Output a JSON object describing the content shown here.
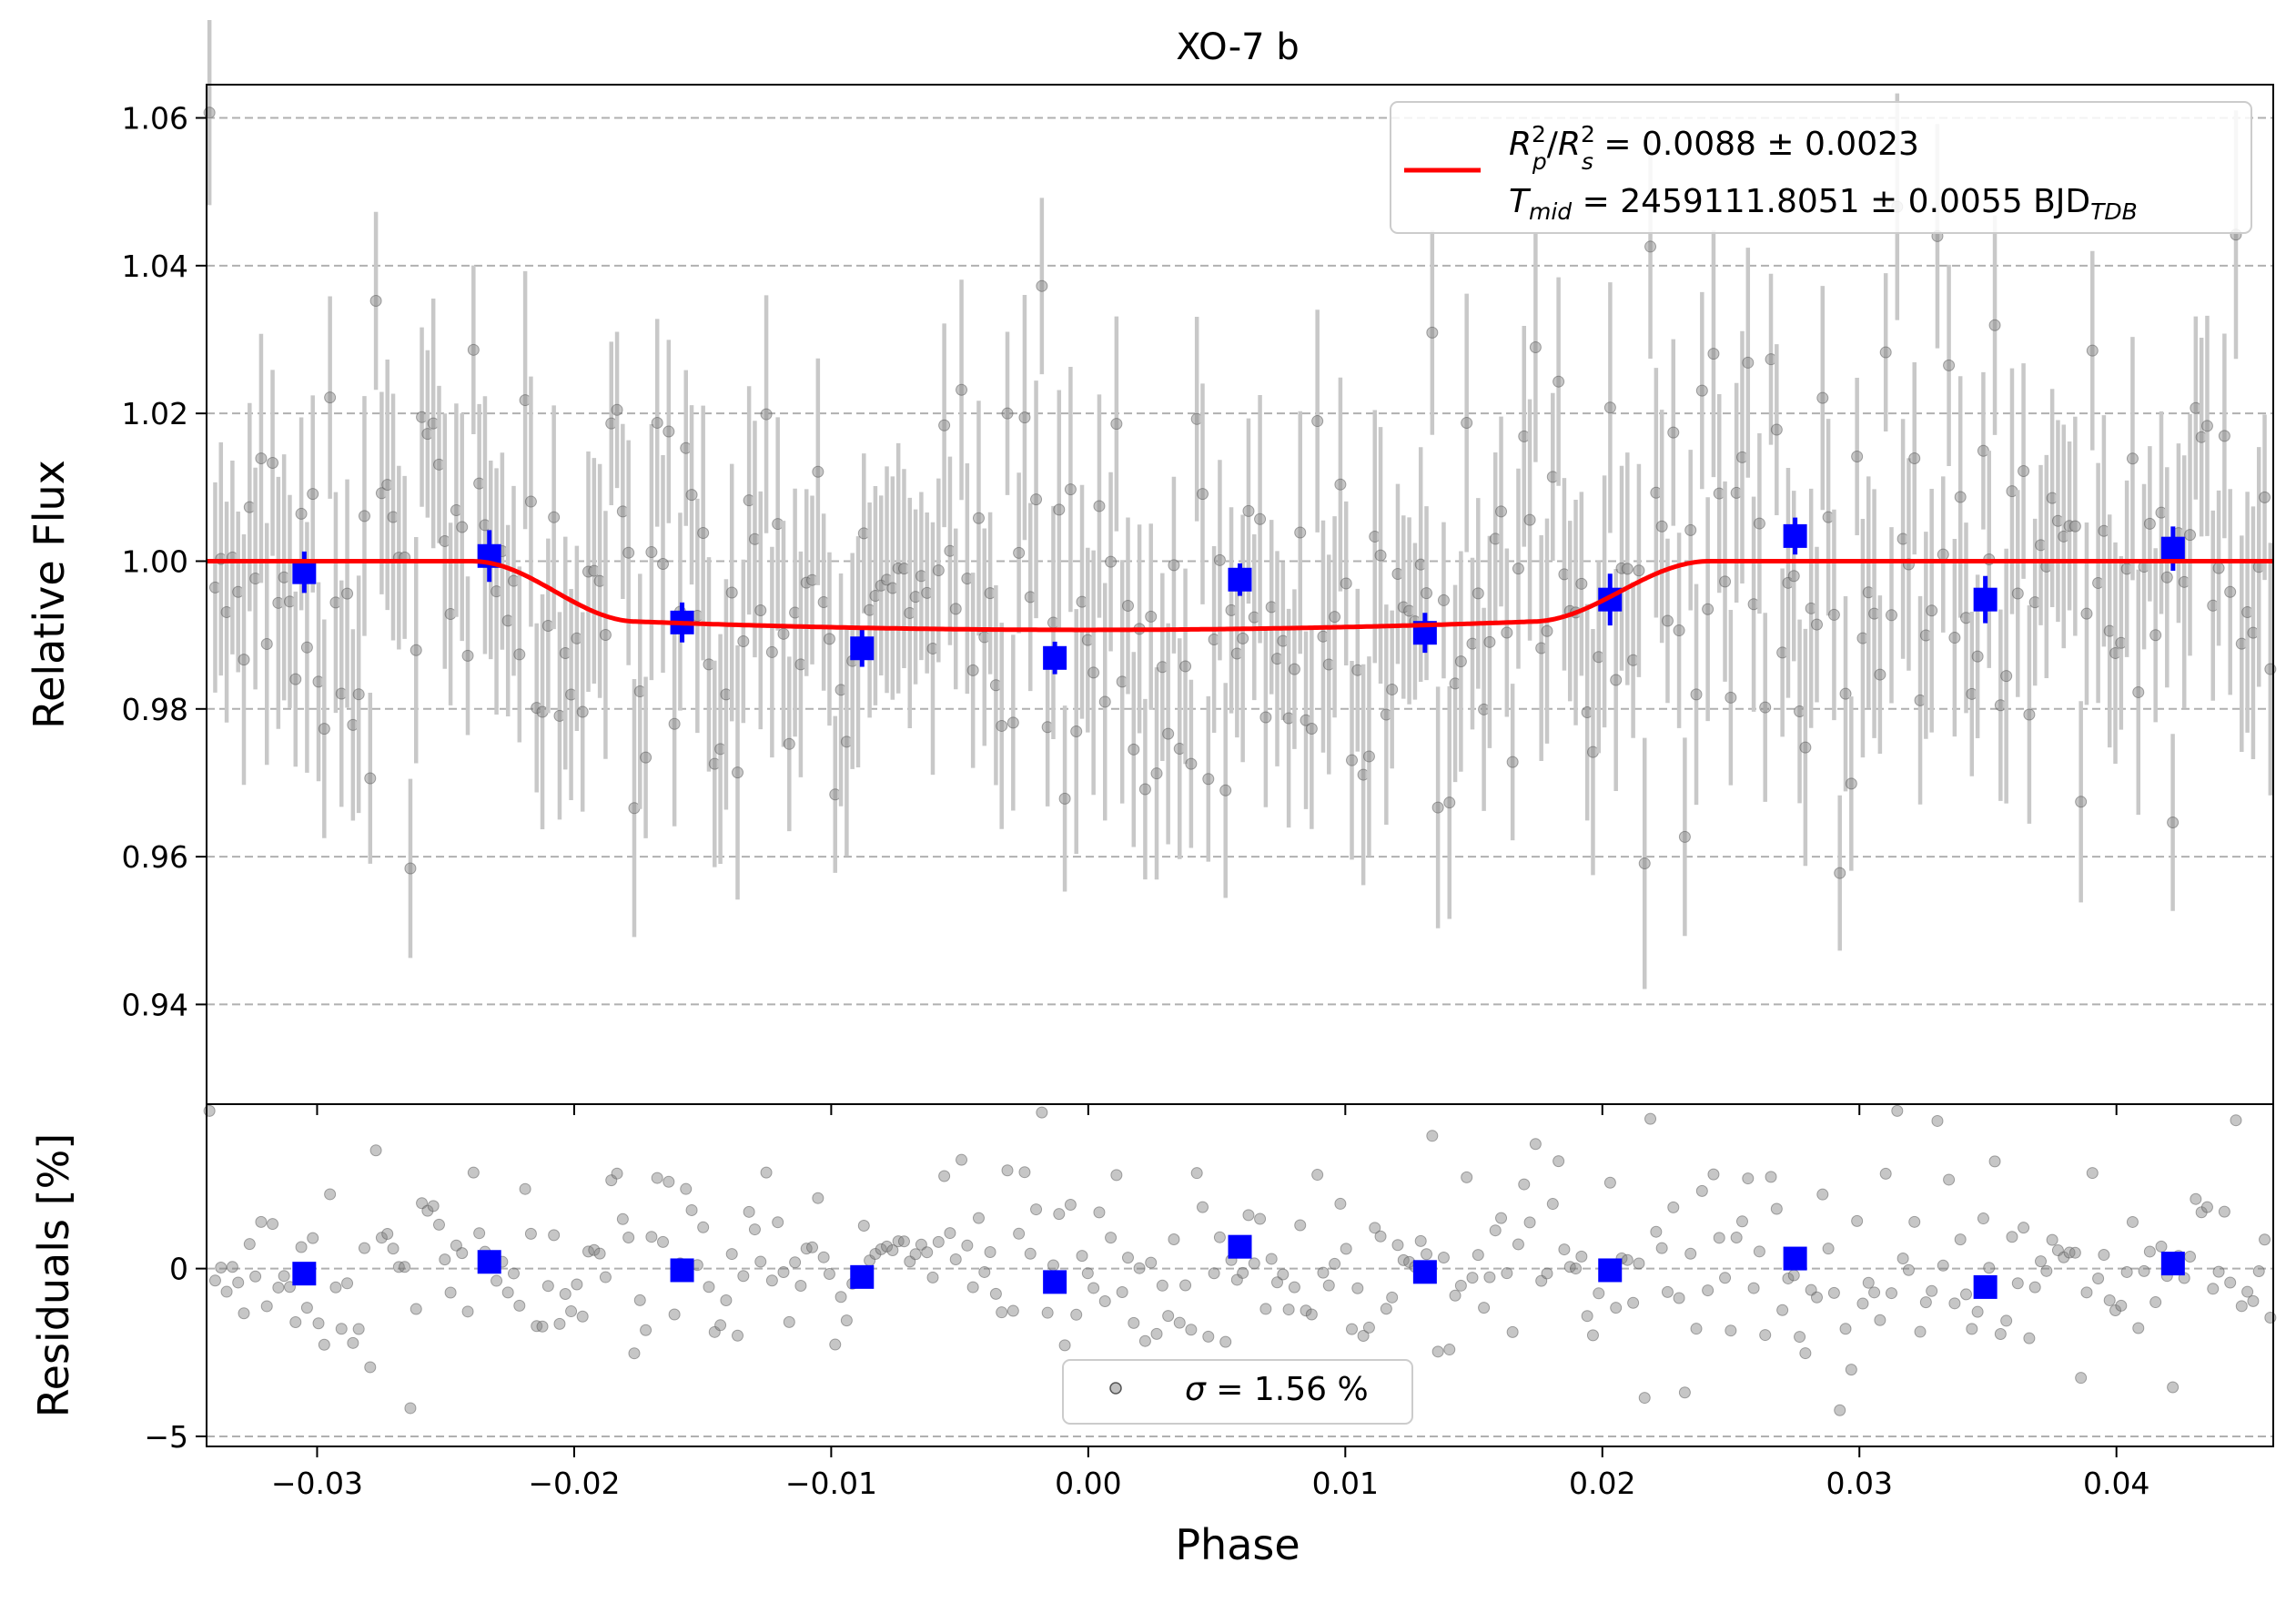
{
  "chart_data": [
    {
      "type": "scatter",
      "title": "XO-7 b",
      "xlabel": "",
      "ylabel": "Relative Flux",
      "xlim": [
        -0.0343,
        0.0461
      ],
      "ylim": [
        0.9265,
        1.0645
      ],
      "x_ticks": [
        -0.03,
        -0.02,
        -0.01,
        0.0,
        0.01,
        0.02,
        0.03,
        0.04
      ],
      "x_tick_labels": [
        "−0.03",
        "−0.02",
        "−0.01",
        "0.00",
        "0.01",
        "0.02",
        "0.03",
        "0.04"
      ],
      "y_ticks": [
        0.94,
        0.96,
        0.98,
        1.0,
        1.02,
        1.04,
        1.06
      ],
      "y_tick_labels": [
        "0.94",
        "0.96",
        "0.98",
        "1.00",
        "1.02",
        "1.04",
        "1.06"
      ],
      "grid": "y-dashed",
      "legend_position": "top-right",
      "legend": {
        "line1_prefix_a": "R",
        "line1_sup_a": "2",
        "line1_sub_a": "p",
        "line1_slash": "/",
        "line1_prefix_b": "R",
        "line1_sup_b": "2",
        "line1_sub_b": "s",
        "line1_value": " = 0.0088 ± 0.0023",
        "line2_prefix": "T",
        "line2_sub": "mid",
        "line2_value": " = 2459111.8051 ± 0.0055 BJD",
        "line2_unit_sub": "TDB"
      },
      "model_curve": {
        "color": "#ff0000",
        "baseline": 1.0,
        "depth": 0.0093,
        "t1": -0.024,
        "t2": -0.0175,
        "t3": 0.0172,
        "t4": 0.0242
      },
      "binned": {
        "color": "#0000ff",
        "x": [
          -0.0305,
          -0.0233,
          -0.0158,
          -0.0088,
          -0.0013,
          0.0059,
          0.0131,
          0.0203,
          0.0275,
          0.0349,
          0.0422
        ],
        "y": [
          0.9985,
          1.0007,
          0.9917,
          0.9882,
          0.9869,
          0.9975,
          0.9903,
          0.9948,
          1.0034,
          0.9948,
          1.0017
        ],
        "yerr": [
          0.0028,
          0.0035,
          0.0027,
          0.0025,
          0.0022,
          0.0022,
          0.0027,
          0.0035,
          0.0025,
          0.0032,
          0.003
        ]
      },
      "raw": {
        "color": "#808080",
        "n_points": 360,
        "x_range": [
          -0.0343,
          0.0461
        ],
        "scatter_sigma": 0.0156,
        "typical_yerr": 0.014
      }
    },
    {
      "type": "scatter",
      "title": "",
      "xlabel": "Phase",
      "ylabel": "Residuals [%]",
      "xlim": [
        -0.0343,
        0.0461
      ],
      "ylim": [
        -5.3,
        4.9
      ],
      "y_ticks": [
        -5,
        0
      ],
      "y_tick_labels": [
        "−5",
        "0"
      ],
      "grid": "y-dashed",
      "legend_position": "bottom-center",
      "legend": {
        "sigma_symbol": "σ",
        "sigma_text": " = 1.56 %"
      },
      "binned": {
        "color": "#0000ff",
        "x": [
          -0.0305,
          -0.0233,
          -0.0158,
          -0.0088,
          -0.0013,
          0.0059,
          0.0131,
          0.0203,
          0.0275,
          0.0349,
          0.0422
        ],
        "y": [
          -0.15,
          0.2,
          -0.05,
          -0.25,
          -0.4,
          0.65,
          -0.1,
          -0.05,
          0.3,
          -0.55,
          0.15
        ]
      },
      "raw": {
        "color": "#808080",
        "sigma_percent": 1.56
      }
    }
  ]
}
